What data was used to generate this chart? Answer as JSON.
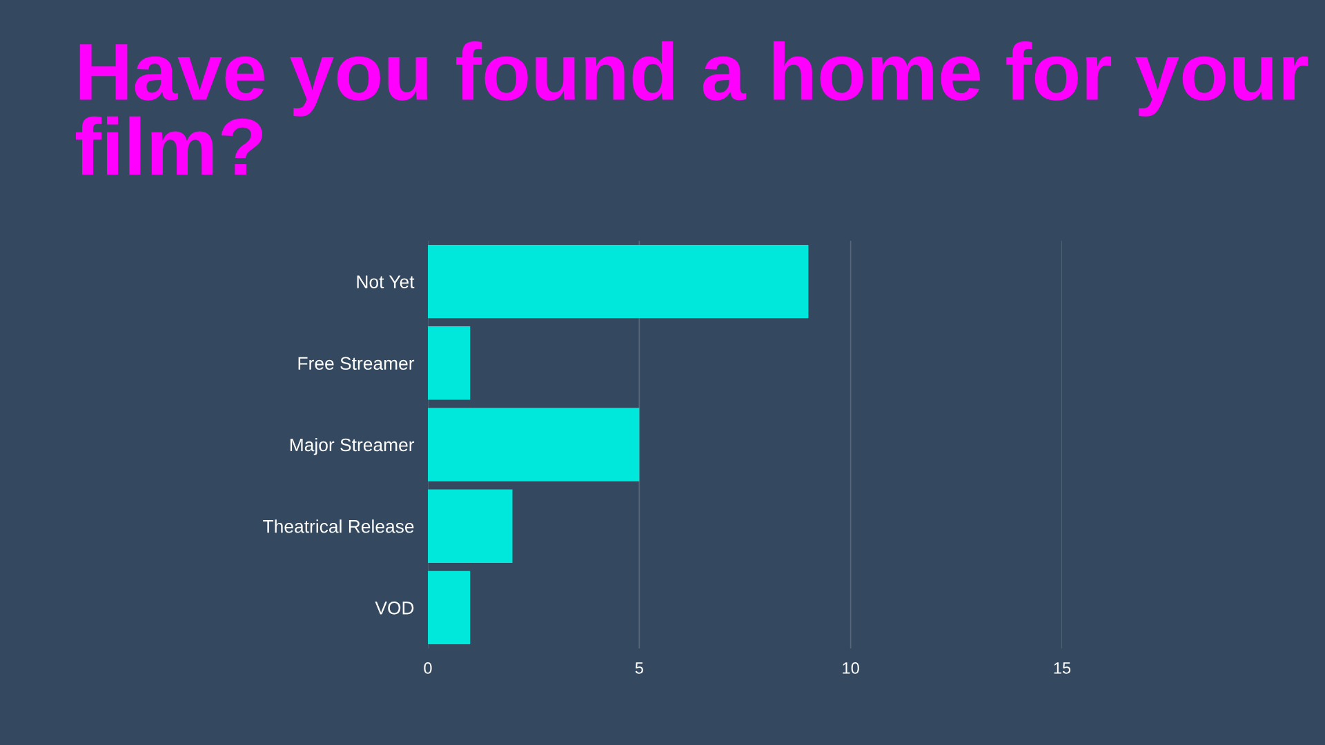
{
  "chart_data": {
    "type": "bar",
    "orientation": "horizontal",
    "title": "Have you found a home for your film?",
    "categories": [
      "Not Yet",
      "Free Streamer",
      "Major Streamer",
      "Theatrical Release",
      "VOD"
    ],
    "values": [
      9,
      1,
      5,
      2,
      1
    ],
    "color": "#00e8dc",
    "xlim": [
      0,
      15
    ],
    "xticks": [
      0,
      5,
      10,
      15
    ],
    "grid": "x"
  }
}
